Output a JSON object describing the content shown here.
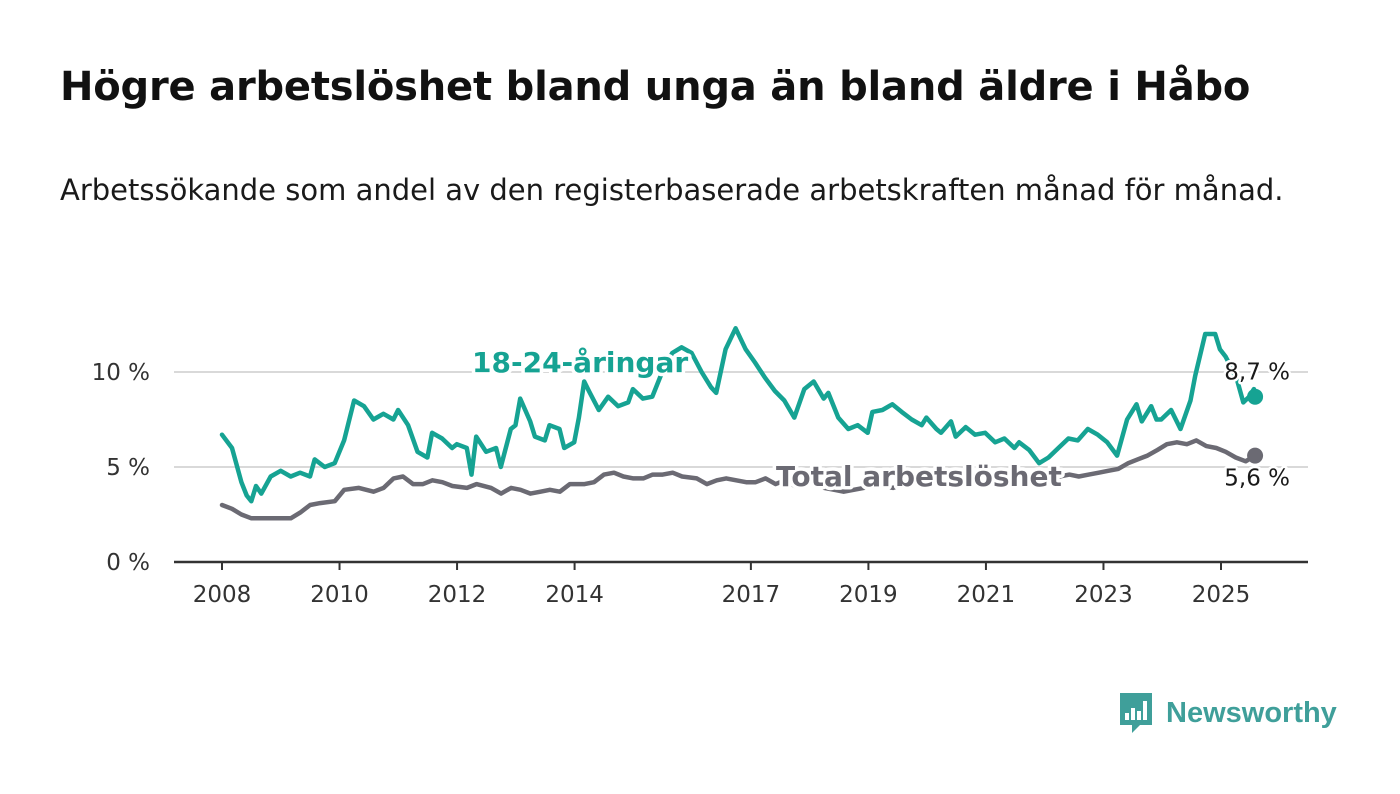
{
  "title": "Högre arbetslöshet bland unga än bland äldre i Håbo",
  "subtitle": "Arbetssökande som andel av den registerbaserade arbetskraften månad för månad.",
  "brand": {
    "name": "Newsworthy",
    "color": "#3f9f9a",
    "icon": "newsworthy-logo-icon"
  },
  "chart_data": {
    "type": "line",
    "ylim": [
      0,
      12
    ],
    "yticks": [
      0,
      5,
      10
    ],
    "ytick_labels": [
      "0 %",
      "5 %",
      "10 %"
    ],
    "xticks": [
      2008,
      2010,
      2012,
      2014,
      2017,
      2019,
      2021,
      2023,
      2025
    ],
    "xtick_labels": [
      "2008",
      "2010",
      "2012",
      "2014",
      "2017",
      "2019",
      "2021",
      "2023",
      "2025"
    ],
    "x_start": 2008.0,
    "x_end": 2025.67,
    "grid": true,
    "series": [
      {
        "name": "18-24-åringar",
        "color": "#16a393",
        "end_label": "8,7 %",
        "points": [
          [
            2008.0,
            6.7
          ],
          [
            2008.17,
            6.0
          ],
          [
            2008.33,
            4.2
          ],
          [
            2008.42,
            3.5
          ],
          [
            2008.5,
            3.2
          ],
          [
            2008.58,
            4.0
          ],
          [
            2008.67,
            3.6
          ],
          [
            2008.83,
            4.5
          ],
          [
            2009.0,
            4.8
          ],
          [
            2009.17,
            4.5
          ],
          [
            2009.33,
            4.7
          ],
          [
            2009.5,
            4.5
          ],
          [
            2009.58,
            5.4
          ],
          [
            2009.75,
            5.0
          ],
          [
            2009.92,
            5.2
          ],
          [
            2010.08,
            6.4
          ],
          [
            2010.25,
            8.5
          ],
          [
            2010.42,
            8.2
          ],
          [
            2010.58,
            7.5
          ],
          [
            2010.75,
            7.8
          ],
          [
            2010.92,
            7.5
          ],
          [
            2011.0,
            8.0
          ],
          [
            2011.17,
            7.2
          ],
          [
            2011.33,
            5.8
          ],
          [
            2011.5,
            5.5
          ],
          [
            2011.58,
            6.8
          ],
          [
            2011.75,
            6.5
          ],
          [
            2011.92,
            6.0
          ],
          [
            2012.0,
            6.2
          ],
          [
            2012.17,
            6.0
          ],
          [
            2012.25,
            4.6
          ],
          [
            2012.33,
            6.6
          ],
          [
            2012.5,
            5.8
          ],
          [
            2012.67,
            6.0
          ],
          [
            2012.75,
            5.0
          ],
          [
            2012.92,
            7.0
          ],
          [
            2013.0,
            7.2
          ],
          [
            2013.08,
            8.6
          ],
          [
            2013.25,
            7.4
          ],
          [
            2013.33,
            6.6
          ],
          [
            2013.5,
            6.4
          ],
          [
            2013.58,
            7.2
          ],
          [
            2013.75,
            7.0
          ],
          [
            2013.83,
            6.0
          ],
          [
            2014.0,
            6.3
          ],
          [
            2014.08,
            7.6
          ],
          [
            2014.17,
            9.5
          ],
          [
            2014.25,
            9.0
          ],
          [
            2014.42,
            8.0
          ],
          [
            2014.58,
            8.7
          ],
          [
            2014.75,
            8.2
          ],
          [
            2014.92,
            8.4
          ],
          [
            2015.0,
            9.1
          ],
          [
            2015.17,
            8.6
          ],
          [
            2015.33,
            8.7
          ],
          [
            2015.5,
            10.0
          ],
          [
            2015.67,
            11.0
          ],
          [
            2015.83,
            11.3
          ],
          [
            2016.0,
            11.0
          ],
          [
            2016.17,
            10.0
          ],
          [
            2016.33,
            9.2
          ],
          [
            2016.42,
            8.9
          ],
          [
            2016.58,
            11.2
          ],
          [
            2016.75,
            12.3
          ],
          [
            2016.92,
            11.2
          ],
          [
            2017.08,
            10.5
          ],
          [
            2017.25,
            9.7
          ],
          [
            2017.42,
            9.0
          ],
          [
            2017.58,
            8.5
          ],
          [
            2017.75,
            7.6
          ],
          [
            2017.92,
            9.1
          ],
          [
            2018.08,
            9.5
          ],
          [
            2018.25,
            8.6
          ],
          [
            2018.33,
            8.9
          ],
          [
            2018.5,
            7.6
          ],
          [
            2018.67,
            7.0
          ],
          [
            2018.83,
            7.2
          ],
          [
            2019.0,
            6.8
          ],
          [
            2019.08,
            7.9
          ],
          [
            2019.25,
            8.0
          ],
          [
            2019.42,
            8.3
          ],
          [
            2019.58,
            7.9
          ],
          [
            2019.75,
            7.5
          ],
          [
            2019.92,
            7.2
          ],
          [
            2020.0,
            7.6
          ],
          [
            2020.17,
            7.0
          ],
          [
            2020.25,
            6.8
          ],
          [
            2020.42,
            7.4
          ],
          [
            2020.5,
            6.6
          ],
          [
            2020.67,
            7.1
          ],
          [
            2020.83,
            6.7
          ],
          [
            2021.0,
            6.8
          ],
          [
            2021.17,
            6.3
          ],
          [
            2021.33,
            6.5
          ],
          [
            2021.5,
            6.0
          ],
          [
            2021.58,
            6.3
          ],
          [
            2021.75,
            5.9
          ],
          [
            2021.92,
            5.2
          ],
          [
            2022.08,
            5.5
          ],
          [
            2022.25,
            6.0
          ],
          [
            2022.42,
            6.5
          ],
          [
            2022.58,
            6.4
          ],
          [
            2022.75,
            7.0
          ],
          [
            2022.92,
            6.7
          ],
          [
            2023.08,
            6.3
          ],
          [
            2023.25,
            5.6
          ],
          [
            2023.42,
            7.5
          ],
          [
            2023.58,
            8.3
          ],
          [
            2023.67,
            7.4
          ],
          [
            2023.83,
            8.2
          ],
          [
            2023.92,
            7.5
          ],
          [
            2024.0,
            7.5
          ],
          [
            2024.17,
            8.0
          ],
          [
            2024.33,
            7.0
          ],
          [
            2024.5,
            8.5
          ],
          [
            2024.58,
            9.8
          ],
          [
            2024.75,
            12.0
          ],
          [
            2024.92,
            12.0
          ],
          [
            2025.0,
            11.2
          ],
          [
            2025.1,
            10.8
          ],
          [
            2025.2,
            10.2
          ],
          [
            2025.3,
            9.5
          ],
          [
            2025.4,
            8.4
          ],
          [
            2025.5,
            8.7
          ],
          [
            2025.58,
            9.1
          ],
          [
            2025.6,
            8.7
          ]
        ]
      },
      {
        "name": "Total arbetslöshet",
        "color": "#6b6a73",
        "end_label": "5,6 %",
        "points": []
      }
    ]
  }
}
